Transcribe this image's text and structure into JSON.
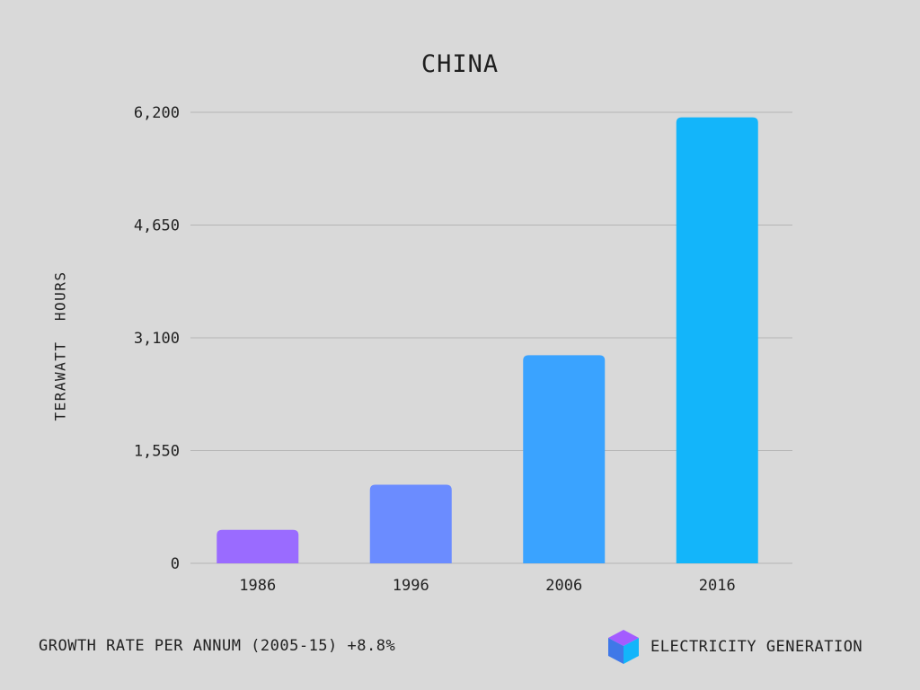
{
  "chart_data": {
    "type": "bar",
    "title": "CHINA",
    "xlabel": "",
    "ylabel": "TERAWATT  HOURS",
    "categories": [
      "1986",
      "1996",
      "2006",
      "2016"
    ],
    "values": [
      460,
      1080,
      2860,
      6130
    ],
    "ylim": [
      0,
      6200
    ],
    "yticks": [
      0,
      1550,
      3100,
      4650,
      6200
    ],
    "ytick_labels": [
      "0",
      "1,550",
      "3,100",
      "4,650",
      "6,200"
    ],
    "grid": true,
    "bar_colors": [
      "#9a6bff",
      "#6b8cff",
      "#3aa3ff",
      "#13b5fa"
    ],
    "gridline_color": "#b5b5b5"
  },
  "footer": {
    "growth_text": "GROWTH RATE PER ANNUM (2005-15) +8.8%",
    "brand_label": "ELECTRICITY GENERATION",
    "brand_icon": "cube-icon"
  }
}
